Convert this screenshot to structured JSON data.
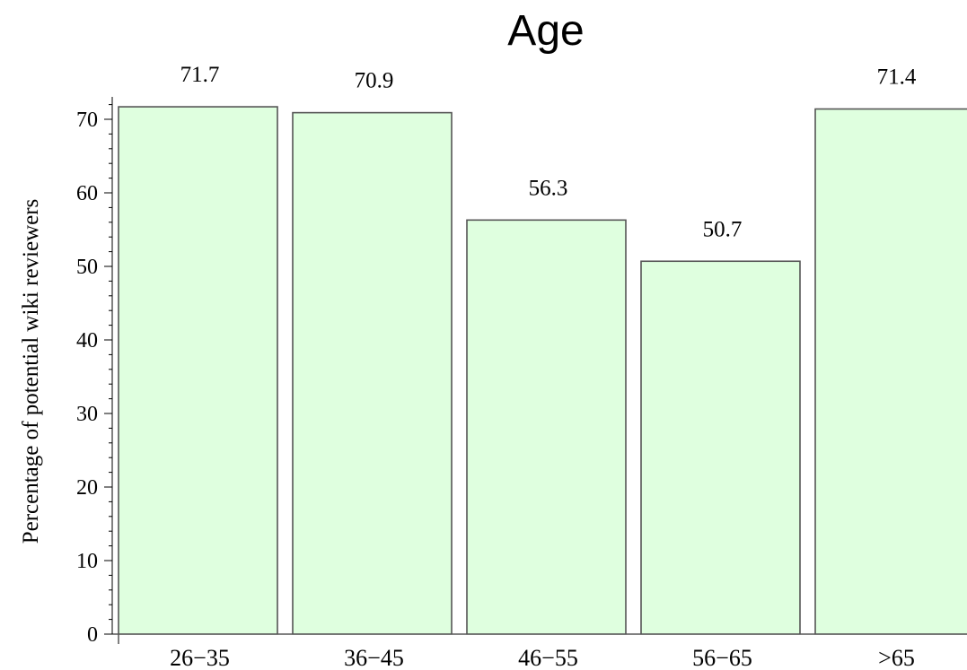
{
  "chart_data": {
    "type": "bar",
    "title": "Age",
    "xlabel": "",
    "ylabel": "Percentage of potential wiki reviewers",
    "categories": [
      "26−35",
      "36−45",
      "46−55",
      "56−65",
      ">65"
    ],
    "values": [
      71.7,
      70.9,
      56.3,
      50.7,
      71.4
    ],
    "value_labels": [
      "71.7",
      "70.9",
      "56.3",
      "50.7",
      "71.4"
    ],
    "y_ticks": [
      0,
      10,
      20,
      30,
      40,
      50,
      60,
      70
    ],
    "ylim": [
      0,
      73
    ],
    "grid": false,
    "legend": "none",
    "bar_color": "#dfffdf",
    "bar_edge_color": "#555555"
  }
}
